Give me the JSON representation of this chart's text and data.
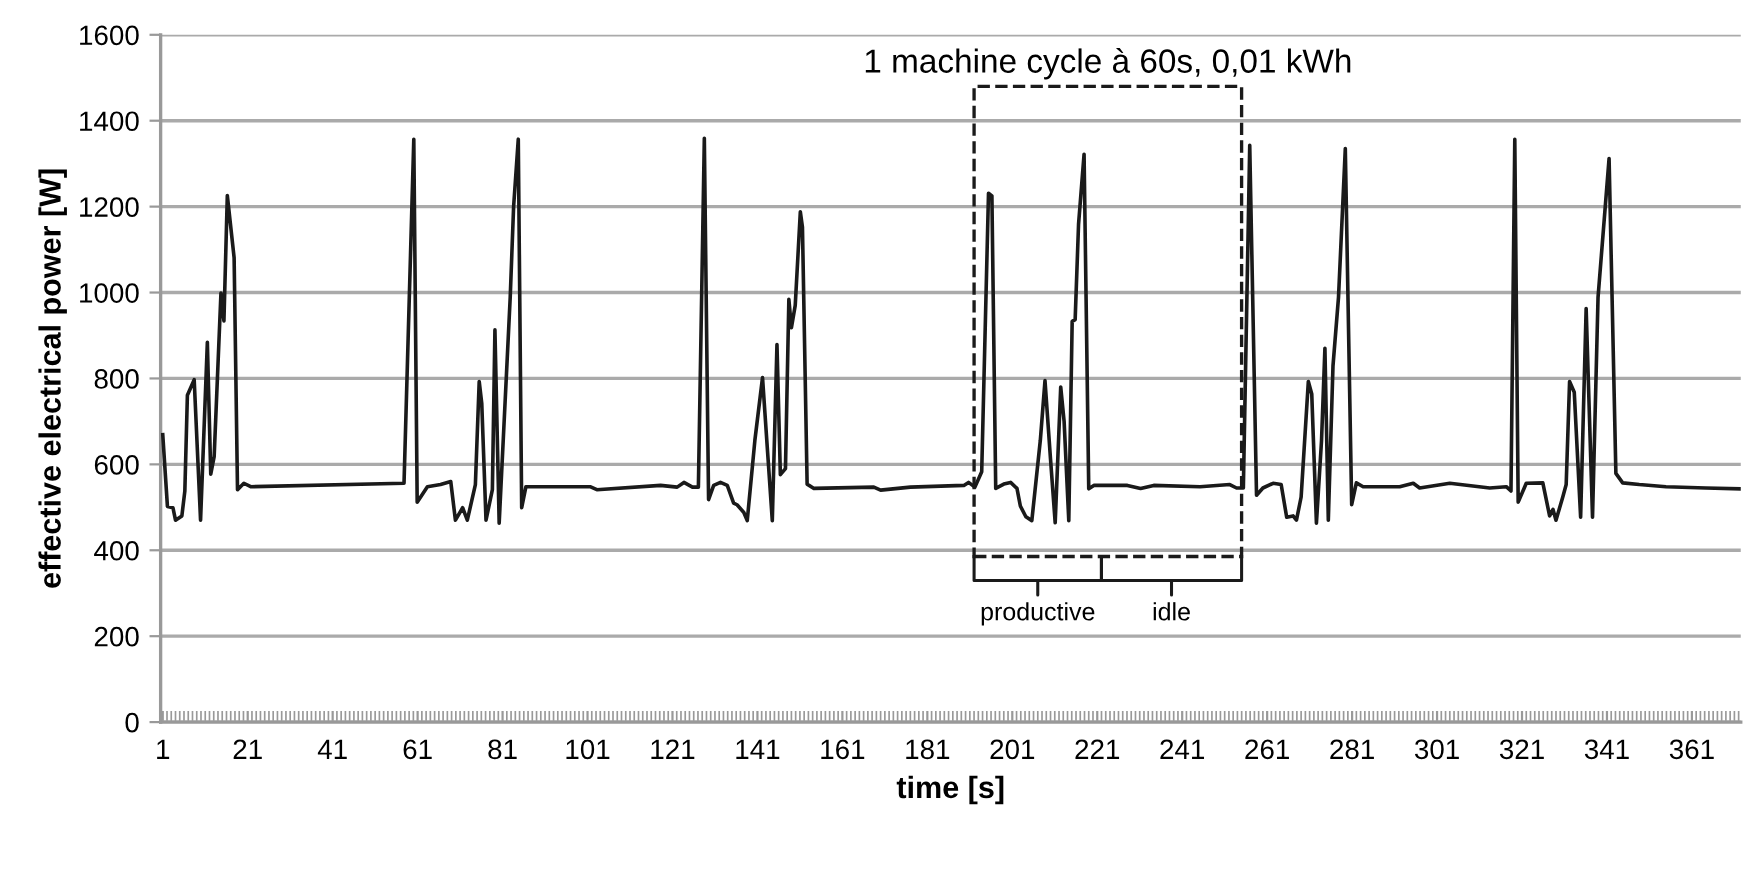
{
  "chart_data": {
    "type": "line",
    "xlabel": "time [s]",
    "ylabel": "effective electrical power [W]",
    "xlim": [
      0.5,
      372.5
    ],
    "ylim": [
      0,
      1600
    ],
    "xticks": [
      1,
      21,
      41,
      61,
      81,
      101,
      121,
      141,
      161,
      181,
      201,
      221,
      241,
      261,
      281,
      301,
      321,
      341,
      361
    ],
    "yticks": [
      0,
      200,
      400,
      600,
      800,
      1000,
      1200,
      1400,
      1600
    ],
    "grid": "y",
    "legend": false,
    "marker": "none",
    "line_style": "solid",
    "series": [
      {
        "color": "#1a1a1a",
        "x": [
          1,
          2.1,
          3.4,
          4,
          5.5,
          6.2,
          6.8,
          8.4,
          9.9,
          11.5,
          12.3,
          13.1,
          14.7,
          15.4,
          16.2,
          17.8,
          18.6,
          20.1,
          21.7,
          57.8,
          60.1,
          60.9,
          63.3,
          66.4,
          68.8,
          69.9,
          71.6,
          72.7,
          74.6,
          75.5,
          76.1,
          77.1,
          78.6,
          79.2,
          80.2,
          82.8,
          83.6,
          84.7,
          85.5,
          86.5,
          89.9,
          101.6,
          103.2,
          118.2,
          122.1,
          123.7,
          125.7,
          127.1,
          128.5,
          129.5,
          130.7,
          132.3,
          133.9,
          135.4,
          136.2,
          137.8,
          138.6,
          140.4,
          142.2,
          143.3,
          144.5,
          145.6,
          146.4,
          147.6,
          148.4,
          149,
          149.9,
          151.1,
          151.6,
          152.7,
          154.3,
          168.4,
          170,
          177,
          189.6,
          190.7,
          192.2,
          193.8,
          195.4,
          196.2,
          197.1,
          199,
          200.6,
          202.1,
          202.9,
          204.2,
          205.6,
          207.6,
          208.7,
          210,
          211.1,
          212.4,
          213.2,
          214.3,
          215.1,
          215.8,
          216.6,
          217.9,
          219,
          220.2,
          228.1,
          231.2,
          234.3,
          245.2,
          252.2,
          253.8,
          255.4,
          256.9,
          258.5,
          260,
          262.4,
          264.3,
          265.6,
          267.1,
          267.9,
          269,
          270.7,
          271.5,
          272.6,
          273.8,
          274.6,
          275.4,
          276.5,
          277.8,
          279.4,
          280.9,
          282,
          283.6,
          292.2,
          295.4,
          296.9,
          304,
          313.4,
          317.3,
          318.4,
          319.3,
          320.1,
          322,
          325.9,
          327.5,
          328.3,
          329,
          330.6,
          331.4,
          332.2,
          333.3,
          334.8,
          336.1,
          337.6,
          338.9,
          341.5,
          343.1,
          344.7,
          348.6,
          354.9,
          364.3,
          372.5
        ],
        "values": [
          669,
          502,
          499,
          470,
          480,
          538,
          761,
          797,
          470,
          884,
          577,
          618,
          999,
          934,
          1226,
          1081,
          541,
          556,
          548,
          556,
          1357,
          512,
          548,
          553,
          560,
          470,
          499,
          470,
          553,
          793,
          742,
          470,
          541,
          913,
          463,
          989,
          1200,
          1357,
          499,
          548,
          548,
          548,
          541,
          551,
          547,
          558,
          547,
          547,
          1359,
          518,
          551,
          558,
          551,
          510,
          506,
          488,
          469,
          656,
          802,
          642,
          469,
          879,
          576,
          590,
          984,
          918,
          970,
          1188,
          1152,
          554,
          544,
          547,
          540,
          547,
          551,
          558,
          547,
          583,
          1231,
          1225,
          544,
          554,
          558,
          544,
          503,
          478,
          469,
          656,
          795,
          612,
          464,
          780,
          700,
          469,
          933,
          937,
          1159,
          1322,
          543,
          551,
          551,
          544,
          551,
          548,
          553,
          545,
          545,
          1343,
          528,
          545,
          556,
          553,
          477,
          480,
          470,
          524,
          793,
          764,
          463,
          655,
          870,
          470,
          829,
          989,
          1335,
          506,
          557,
          548,
          548,
          556,
          545,
          556,
          545,
          548,
          538,
          1357,
          512,
          556,
          557,
          480,
          495,
          470,
          524,
          553,
          793,
          768,
          477,
          963,
          477,
          989,
          1312,
          579,
          557,
          553,
          548,
          545,
          543
        ]
      }
    ],
    "annotations": [
      "1 machine cycle à 60s, 0,01 kWh",
      "productive",
      "idle"
    ]
  }
}
